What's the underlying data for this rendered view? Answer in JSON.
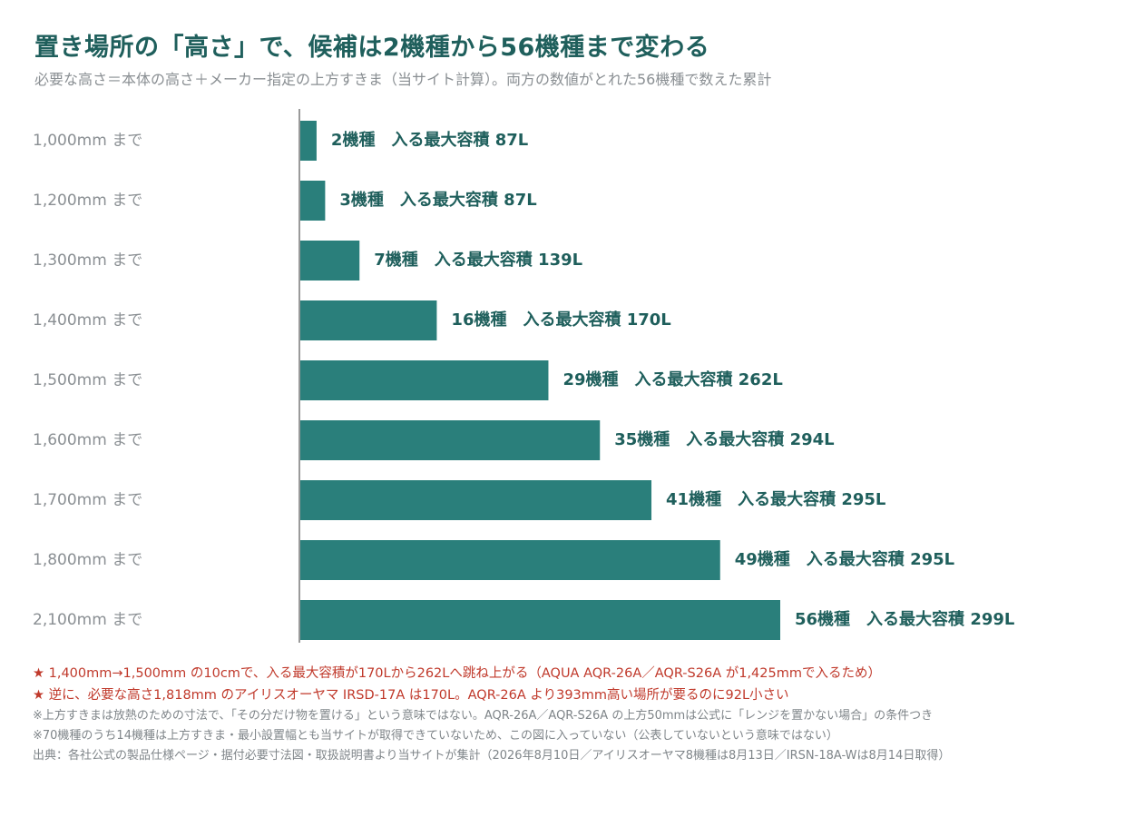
{
  "title": "置き場所の「高さ」で、候補は2機種から56機種まで変わる",
  "subtitle": "必要な高さ＝本体の高さ＋メーカー指定の上方すきま（当サイト計算）。両方の数値がとれた56機種で数えた累計",
  "colors": {
    "bar": "#2a7f7b",
    "label": "#1f5f5c",
    "axis_text": "#8a8f93",
    "axis_line": "#9a9a9a",
    "accent": "#c0392b"
  },
  "chart_data": {
    "type": "bar",
    "orientation": "horizontal",
    "categories": [
      "1,000mm まで",
      "1,200mm まで",
      "1,300mm まで",
      "1,400mm まで",
      "1,500mm まで",
      "1,600mm まで",
      "1,700mm まで",
      "1,800mm まで",
      "2,100mm まで"
    ],
    "values": [
      2,
      3,
      7,
      16,
      29,
      35,
      41,
      49,
      56
    ],
    "data_labels": [
      "2機種　入る最大容積 87L",
      "3機種　入る最大容積 87L",
      "7機種　入る最大容積 139L",
      "16機種　入る最大容積 170L",
      "29機種　入る最大容積 262L",
      "35機種　入る最大容積 294L",
      "41機種　入る最大容積 295L",
      "49機種　入る最大容積 295L",
      "56機種　入る最大容積 299L"
    ],
    "xlim": [
      0,
      56
    ],
    "grid": false,
    "legend": "none"
  },
  "notes": {
    "star1": "★  1,400mm→1,500mm の10cmで、入る最大容積が170Lから262Lへ跳ね上がる（AQUA AQR-26A／AQR-S26A が1,425mmで入るため）",
    "star2": "★  逆に、必要な高さ1,818mm のアイリスオーヤマ IRSD-17A は170L。AQR-26A より393mm高い場所が要るのに92L小さい",
    "note1": "※上方すきまは放熱のための寸法で、「その分だけ物を置ける」という意味ではない。AQR-26A／AQR-S26A の上方50mmは公式に「レンジを置かない場合」の条件つき",
    "note2": "※70機種のうち14機種は上方すきま・最小設置幅とも当サイトが取得できていないため、この図に入っていない（公表していないという意味ではない）",
    "source": "出典：各社公式の製品仕様ページ・据付必要寸法図・取扱説明書より当サイトが集計（2026年8月10日／アイリスオーヤマ8機種は8月13日／IRSN-18A-Wは8月14日取得）"
  }
}
